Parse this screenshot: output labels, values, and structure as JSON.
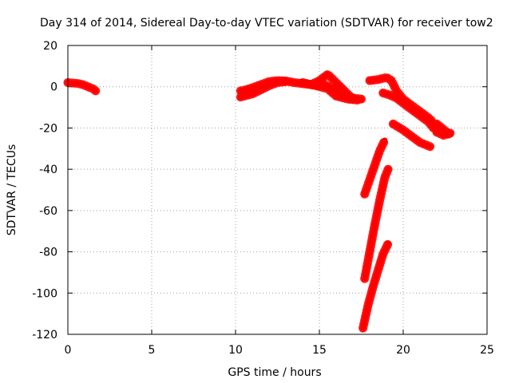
{
  "chart_data": {
    "type": "scatter",
    "title": "Day 314 of 2014, Sidereal Day-to-day VTEC variation (SDTVAR) for receiver tow2",
    "xlabel": "GPS time / hours",
    "ylabel": "SDTVAR / TECUs",
    "xlim": [
      0,
      25
    ],
    "ylim": [
      -120,
      20
    ],
    "xticks": [
      0,
      5,
      10,
      15,
      20,
      25
    ],
    "yticks": [
      20,
      0,
      -20,
      -40,
      -60,
      -80,
      -100,
      -120
    ],
    "grid": true,
    "legend": "none",
    "color": "#ff0000",
    "series": [
      {
        "x": [
          0.0,
          0.3,
          0.6,
          0.9,
          1.2,
          1.5,
          1.65
        ],
        "y": [
          2.0,
          1.8,
          1.6,
          1.0,
          0.0,
          -1.0,
          -2.0
        ]
      },
      {
        "x": [
          10.3,
          10.6,
          11.0,
          11.5,
          12.0,
          12.5,
          13.0,
          13.5,
          14.0,
          14.5,
          15.0,
          15.3,
          15.6,
          16.0,
          16.5,
          17.0,
          17.5
        ],
        "y": [
          -2.0,
          -1.5,
          -0.5,
          1.0,
          2.5,
          3.0,
          2.8,
          2.0,
          1.5,
          1.0,
          0.5,
          1.0,
          0.0,
          -2.0,
          -4.5,
          -5.5,
          -6.0
        ]
      },
      {
        "x": [
          10.3,
          11.0,
          11.5,
          12.0,
          12.5,
          13.0
        ],
        "y": [
          -5.0,
          -3.5,
          -1.5,
          0.5,
          2.0,
          2.5
        ]
      },
      {
        "x": [
          14.5,
          15.0,
          15.5,
          16.0,
          16.5,
          17.0
        ],
        "y": [
          1.0,
          3.0,
          6.0,
          2.0,
          -2.0,
          -6.0
        ]
      },
      {
        "x": [
          14.0,
          14.8,
          15.5,
          16.0,
          16.7,
          17.3
        ],
        "y": [
          2.0,
          0.5,
          -1.0,
          -4.5,
          -6.0,
          -6.5
        ]
      },
      {
        "x": [
          18.0,
          18.5,
          19.0,
          19.3,
          19.6,
          20.0,
          20.5,
          21.0,
          21.5,
          21.7
        ],
        "y": [
          3.0,
          3.5,
          4.5,
          3.0,
          -2.0,
          -6.0,
          -9.0,
          -12.0,
          -15.0,
          -16.5
        ]
      },
      {
        "x": [
          18.8,
          19.2,
          19.6,
          20.0,
          20.5,
          21.0,
          21.5,
          21.8
        ],
        "y": [
          -3.0,
          -4.0,
          -5.5,
          -8.0,
          -11.0,
          -14.0,
          -17.0,
          -20.0
        ]
      },
      {
        "x": [
          19.4,
          20.0,
          20.5,
          21.0,
          21.6
        ],
        "y": [
          -18.0,
          -21.0,
          -24.0,
          -27.0,
          -29.0
        ]
      },
      {
        "x": [
          22.0,
          22.3,
          22.6,
          22.7
        ],
        "y": [
          -18.0,
          -20.0,
          -22.0,
          -23.0
        ]
      },
      {
        "x": [
          22.0,
          22.4,
          22.8
        ],
        "y": [
          -22.0,
          -23.5,
          -22.5
        ]
      },
      {
        "x": [
          17.7,
          18.0,
          18.3,
          18.6,
          18.9
        ],
        "y": [
          -52.0,
          -45.0,
          -38.0,
          -31.0,
          -26.0
        ]
      },
      {
        "x": [
          17.7,
          18.0,
          18.3,
          18.6,
          18.9,
          19.1
        ],
        "y": [
          -93.0,
          -80.0,
          -67.0,
          -55.0,
          -44.0,
          -40.0
        ]
      },
      {
        "x": [
          17.6,
          17.9,
          18.2,
          18.5,
          18.8,
          19.1
        ],
        "y": [
          -117.0,
          -106.0,
          -97.0,
          -89.0,
          -81.0,
          -76.0
        ]
      }
    ]
  }
}
